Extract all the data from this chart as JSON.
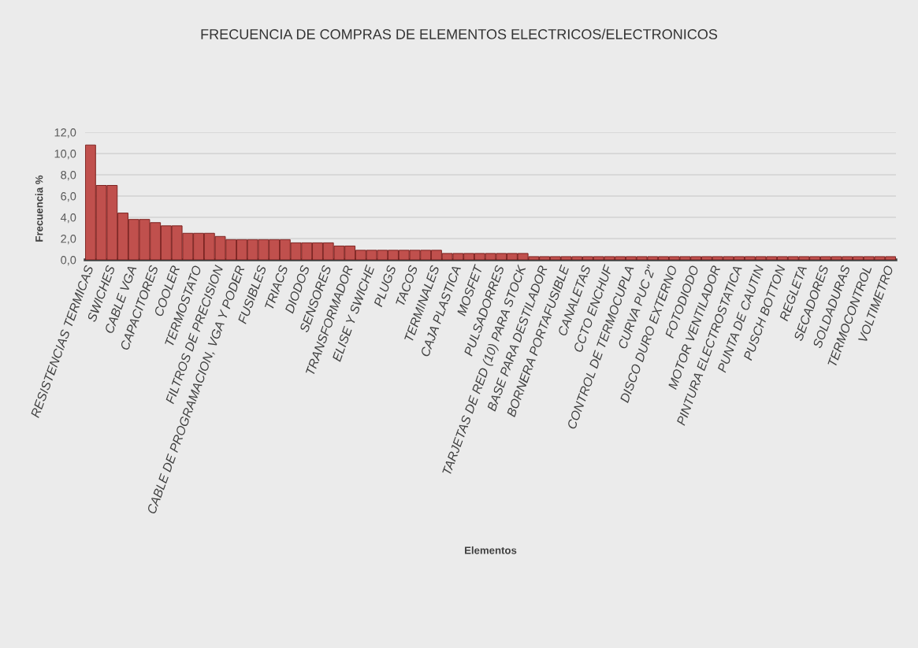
{
  "chart_data": {
    "type": "bar",
    "title": "FRECUENCIA DE COMPRAS DE ELEMENTOS ELECTRICOS/ELECTRONICOS",
    "xlabel": "Elementos",
    "ylabel": "Frecuencia %",
    "categories": [
      "RESISTENCIAS TERMICAS",
      null,
      "SWICHES",
      null,
      "CABLE VGA",
      null,
      "CAPACITORES",
      null,
      "COOLER",
      null,
      "TERMOSTATO",
      null,
      "FILTROS DE PRECISION",
      null,
      "CABLE DE PROGRAMACION, VGA Y PODER",
      null,
      "FUSIBLES",
      null,
      "TRIACS",
      null,
      "DIODOS",
      null,
      "SENSORES",
      null,
      "TRANSFORMADOR",
      null,
      "ELISE Y SWICHE",
      null,
      "PLUGS",
      null,
      "TACOS",
      null,
      "TERMINALES",
      null,
      "CAJA PLASTICA",
      null,
      "MOSFET",
      null,
      "PULSADORRES",
      null,
      "TARJETAS DE RED (10) PARA STOCK",
      null,
      "BASE PARA DESTILADOR",
      null,
      "BORNERA PORTAFUSIBLE",
      null,
      "CANALETAS",
      null,
      "CCTO ENCHUF",
      null,
      "CONTROL DE TERMOCUPLA",
      null,
      "CURVA PUC 2\"",
      null,
      "DISCO DURO EXTERNO",
      null,
      "FOTODIODO",
      null,
      "MOTOR VENTILADOR",
      null,
      "PINTURA ELECTROSTATICA",
      null,
      "PUNTA DE CAUTIN",
      null,
      "PUSCH BOTTON",
      null,
      "REGLETA",
      null,
      "SECADORES",
      null,
      "SOLDADURAS",
      null,
      "TERMOCONTROL",
      null,
      "VOLTIMETRO"
    ],
    "values": [
      10.8,
      7.0,
      7.0,
      4.4,
      3.8,
      3.8,
      3.5,
      3.2,
      3.2,
      2.5,
      2.5,
      2.5,
      2.2,
      1.9,
      1.9,
      1.9,
      1.9,
      1.9,
      1.9,
      1.6,
      1.6,
      1.6,
      1.6,
      1.3,
      1.3,
      0.9,
      0.9,
      0.9,
      0.9,
      0.9,
      0.9,
      0.9,
      0.9,
      0.6,
      0.6,
      0.6,
      0.6,
      0.6,
      0.6,
      0.6,
      0.6,
      0.3,
      0.3,
      0.3,
      0.3,
      0.3,
      0.3,
      0.3,
      0.3,
      0.3,
      0.3,
      0.3,
      0.3,
      0.3,
      0.3,
      0.3,
      0.3,
      0.3,
      0.3,
      0.3,
      0.3,
      0.3,
      0.3,
      0.3,
      0.3,
      0.3,
      0.3,
      0.3,
      0.3,
      0.3,
      0.3,
      0.3,
      0.3,
      0.3,
      0.3
    ],
    "color": "#c0504d",
    "ylim": [
      0,
      12
    ],
    "yticks": [
      {
        "value": 0,
        "label": "0,0"
      },
      {
        "value": 2,
        "label": "2,0"
      },
      {
        "value": 4,
        "label": "4,0"
      },
      {
        "value": 6,
        "label": "6,0"
      },
      {
        "value": 8,
        "label": "8,0"
      },
      {
        "value": 10,
        "label": "10,0"
      },
      {
        "value": 12,
        "label": "12,0"
      }
    ],
    "grid": "y"
  }
}
